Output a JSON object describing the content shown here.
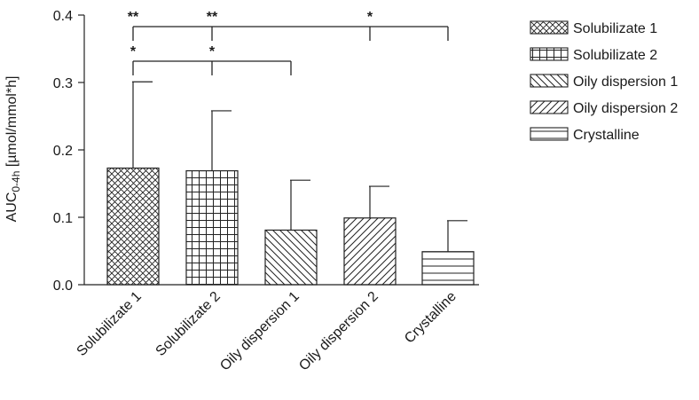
{
  "chart_data": {
    "type": "bar",
    "ylabel": "AUC",
    "ylabel_sub": "0-4h",
    "ylabel_rest": " [µmol/mmol*h]",
    "ylim": [
      0,
      0.4
    ],
    "yticks": [
      "0.0",
      "0.1",
      "0.2",
      "0.3",
      "0.4"
    ],
    "ytick_values": [
      0,
      0.1,
      0.2,
      0.3,
      0.4
    ],
    "categories": [
      "Solubilizate 1",
      "Solubilizate 2",
      "Oily dispersion 1",
      "Oily dispersion 2",
      "Crystalline"
    ],
    "values": [
      0.173,
      0.169,
      0.081,
      0.099,
      0.049
    ],
    "errors": [
      0.128,
      0.089,
      0.074,
      0.047,
      0.046
    ],
    "patterns": [
      "crosshatch",
      "grid",
      "back-diagonal",
      "forward-diagonal",
      "horizontal"
    ],
    "legend": {
      "position": "right",
      "entries": [
        "Solubilizate 1",
        "Solubilizate 2",
        "Oily dispersion 1",
        "Oily dispersion 2",
        "Crystalline"
      ]
    },
    "significance": [
      {
        "group": 1,
        "from": 0,
        "to": 4,
        "stars": [
          {
            "cat": 0,
            "label": "**"
          },
          {
            "cat": 1,
            "label": "**"
          },
          {
            "cat": 3,
            "label": "*"
          }
        ]
      },
      {
        "group": 2,
        "from": 0,
        "to": 2,
        "stars": [
          {
            "cat": 0,
            "label": "*"
          },
          {
            "cat": 1,
            "label": "*"
          }
        ]
      }
    ]
  }
}
